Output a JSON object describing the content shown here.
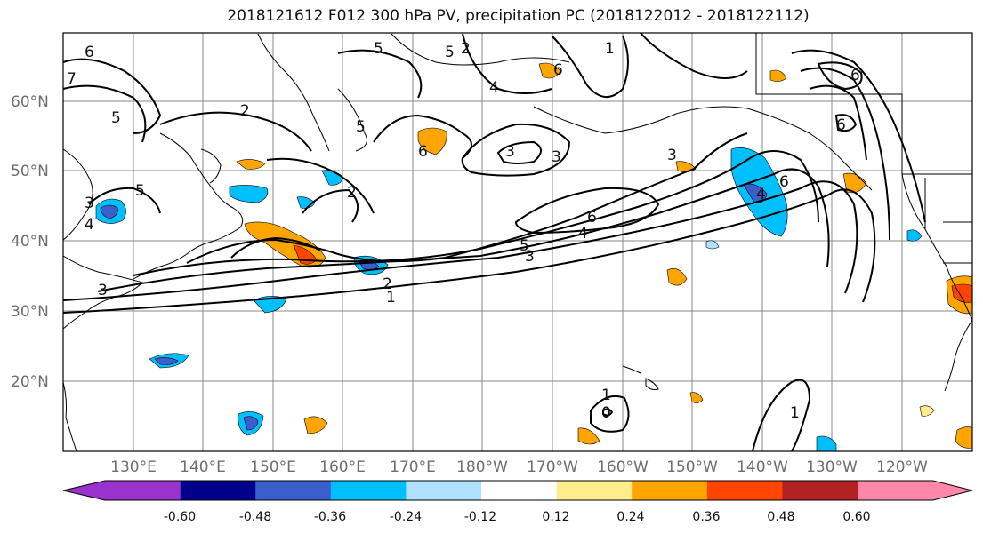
{
  "title": "2018121612 F012 300 hPa PV, precipitation PC (2018122012 - 2018122112)",
  "lat_labels": [
    "60°N",
    "50°N",
    "40°N",
    "30°N",
    "20°N"
  ],
  "lon_labels": [
    "130°E",
    "140°E",
    "150°E",
    "160°E",
    "170°E",
    "180°W",
    "170°W",
    "160°W",
    "150°W",
    "140°W",
    "130°W",
    "120°W"
  ],
  "colorbar": {
    "ticks": [
      "-0.60",
      "-0.48",
      "-0.36",
      "-0.24",
      "-0.12",
      "0.12",
      "0.24",
      "0.36",
      "0.48",
      "0.60"
    ],
    "colors": [
      "#9a32cd",
      "#00008b",
      "#3a5fcd",
      "#00bfff",
      "#b0e2ff",
      "#ffffff",
      "#ffec8b",
      "#ffa500",
      "#ff4500",
      "#b22222",
      "#ff88aa"
    ]
  },
  "contour_labels": [
    "6",
    "7",
    "5",
    "2",
    "3",
    "4",
    "5",
    "2",
    "3",
    "5",
    "3",
    "6",
    "2",
    "3",
    "5",
    "4",
    "6",
    "1",
    "2",
    "3",
    "1",
    "5",
    "6",
    "6",
    "5",
    "6",
    "4",
    "4",
    "6",
    "3",
    "1",
    "0",
    "1"
  ],
  "colors": {
    "contour": "#000000",
    "grid": "#888888",
    "coast": "#000000",
    "axis_label": "#6e6e6e"
  }
}
